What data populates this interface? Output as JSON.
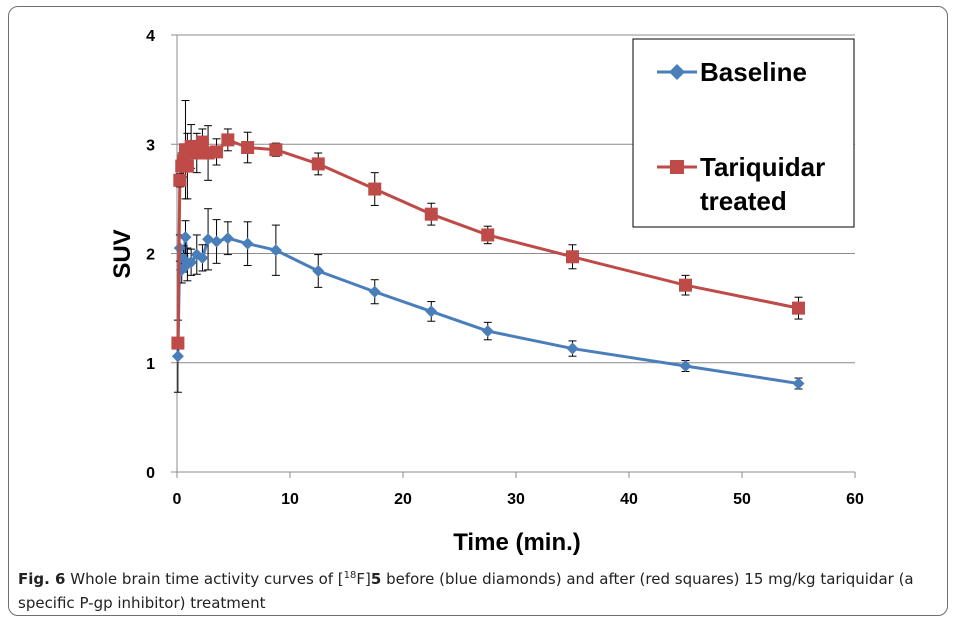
{
  "chart_data": {
    "type": "line",
    "xlabel": "Time (min.)",
    "ylabel": "SUV",
    "xlim": [
      0,
      60
    ],
    "ylim": [
      0,
      4
    ],
    "xticks": [
      0,
      10,
      20,
      30,
      40,
      50,
      60
    ],
    "yticks": [
      0,
      1,
      2,
      3,
      4
    ],
    "grid": "horizontal",
    "legend_position": "top-right",
    "series": [
      {
        "name": "Baseline",
        "color": "#4a7ebb",
        "marker": "diamond",
        "points": [
          {
            "x": 0.08,
            "y": 1.06,
            "err": 0.33
          },
          {
            "x": 0.25,
            "y": 2.05,
            "err": 0.12
          },
          {
            "x": 0.42,
            "y": 1.85,
            "err": 0.12
          },
          {
            "x": 0.58,
            "y": 1.95,
            "err": 0.12
          },
          {
            "x": 0.75,
            "y": 2.15,
            "err": 0.15
          },
          {
            "x": 0.92,
            "y": 1.9,
            "err": 0.15
          },
          {
            "x": 1.25,
            "y": 1.92,
            "err": 0.12
          },
          {
            "x": 1.75,
            "y": 1.99,
            "err": 0.18
          },
          {
            "x": 2.25,
            "y": 1.96,
            "err": 0.12
          },
          {
            "x": 2.75,
            "y": 2.13,
            "err": 0.28
          },
          {
            "x": 3.5,
            "y": 2.11,
            "err": 0.2
          },
          {
            "x": 4.5,
            "y": 2.14,
            "err": 0.15
          },
          {
            "x": 6.25,
            "y": 2.09,
            "err": 0.2
          },
          {
            "x": 8.75,
            "y": 2.03,
            "err": 0.23
          },
          {
            "x": 12.5,
            "y": 1.84,
            "err": 0.15
          },
          {
            "x": 17.5,
            "y": 1.65,
            "err": 0.11
          },
          {
            "x": 22.5,
            "y": 1.47,
            "err": 0.09
          },
          {
            "x": 27.5,
            "y": 1.29,
            "err": 0.08
          },
          {
            "x": 35,
            "y": 1.13,
            "err": 0.07
          },
          {
            "x": 45,
            "y": 0.97,
            "err": 0.05
          },
          {
            "x": 55,
            "y": 0.81,
            "err": 0.05
          }
        ]
      },
      {
        "name": "Tariquidar treated",
        "color": "#be4b48",
        "marker": "square",
        "points": [
          {
            "x": 0.08,
            "y": 1.18,
            "err": 0
          },
          {
            "x": 0.25,
            "y": 2.67,
            "err": 0.06
          },
          {
            "x": 0.42,
            "y": 2.8,
            "err": 0.12
          },
          {
            "x": 0.58,
            "y": 2.85,
            "err": 0.15
          },
          {
            "x": 0.75,
            "y": 2.95,
            "err": 0.45
          },
          {
            "x": 0.92,
            "y": 2.8,
            "err": 0.3
          },
          {
            "x": 1.25,
            "y": 2.98,
            "err": 0.2
          },
          {
            "x": 1.75,
            "y": 2.92,
            "err": 0.18
          },
          {
            "x": 2.25,
            "y": 3.02,
            "err": 0.12
          },
          {
            "x": 2.75,
            "y": 2.92,
            "err": 0.25
          },
          {
            "x": 3.5,
            "y": 2.93,
            "err": 0.12
          },
          {
            "x": 4.5,
            "y": 3.04,
            "err": 0.1
          },
          {
            "x": 6.25,
            "y": 2.97,
            "err": 0.14
          },
          {
            "x": 8.75,
            "y": 2.95,
            "err": 0.06
          },
          {
            "x": 12.5,
            "y": 2.82,
            "err": 0.1
          },
          {
            "x": 17.5,
            "y": 2.59,
            "err": 0.15
          },
          {
            "x": 22.5,
            "y": 2.36,
            "err": 0.1
          },
          {
            "x": 27.5,
            "y": 2.17,
            "err": 0.08
          },
          {
            "x": 35,
            "y": 1.97,
            "err": 0.11
          },
          {
            "x": 45,
            "y": 1.71,
            "err": 0.09
          },
          {
            "x": 55,
            "y": 1.5,
            "err": 0.1
          }
        ]
      }
    ]
  },
  "legend": {
    "baseline_label": "Baseline",
    "tariquidar_line1": "Tariquidar",
    "tariquidar_line2": "treated"
  },
  "caption": {
    "fig_label": "Fig. 6",
    "text_before_sup": " Whole brain time activity curves of [",
    "sup": "18",
    "text_after_sup": "F]",
    "compound": "5",
    "text_rest": " before (blue diamonds) and after (red squares) 15 mg/kg tariquidar (a specific P-gp inhibitor) treatment"
  }
}
